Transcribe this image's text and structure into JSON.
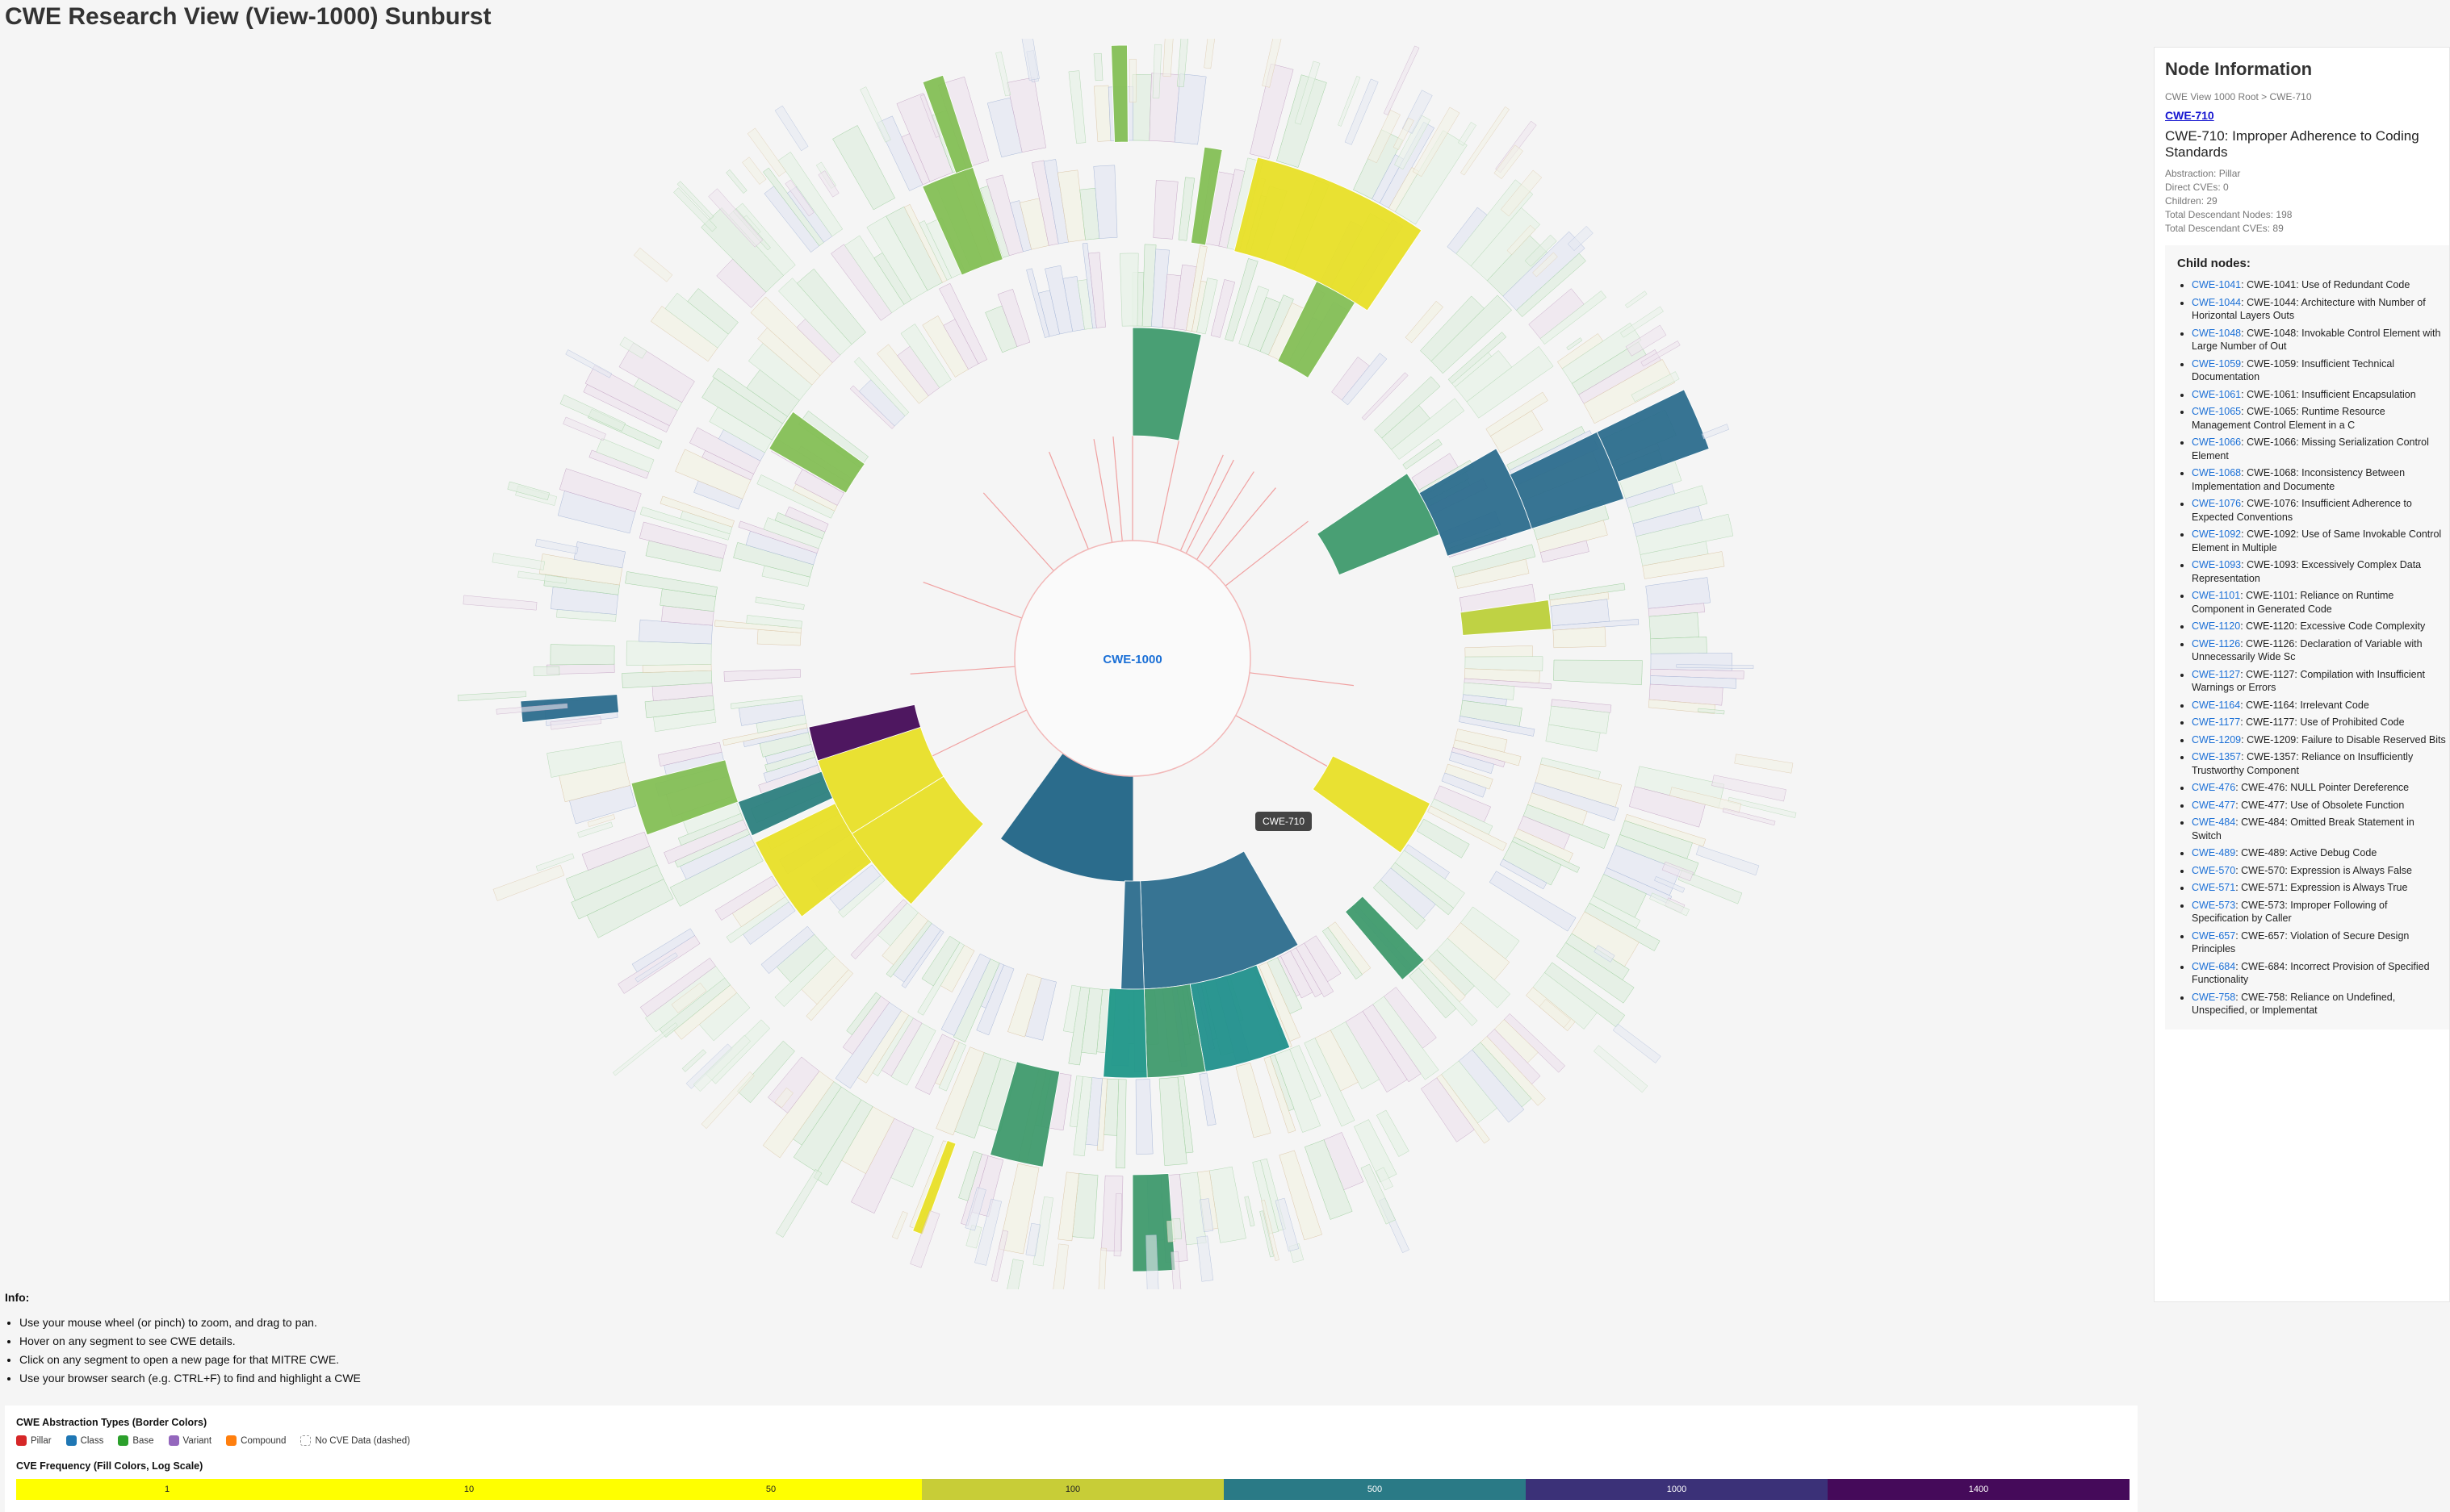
{
  "title": "CWE Research View (View-1000) Sunburst",
  "center_label": "CWE-1000",
  "tooltip": "CWE-710",
  "panel": {
    "heading": "Node Information",
    "breadcrumb": "CWE View 1000 Root > CWE-710",
    "link": "CWE-710",
    "name": "CWE-710: Improper Adherence to Coding Standards",
    "abstraction": "Abstraction: Pillar",
    "direct_cves": "Direct CVEs: 0",
    "children": "Children: 29",
    "descendant_nodes": "Total Descendant Nodes: 198",
    "descendant_cves": "Total Descendant CVEs: 89",
    "child_nodes_heading": "Child nodes:",
    "child_nodes": [
      {
        "id": "CWE-1041",
        "text": ": CWE-1041: Use of Redundant Code"
      },
      {
        "id": "CWE-1044",
        "text": ": CWE-1044: Architecture with Number of Horizontal Layers Outs"
      },
      {
        "id": "CWE-1048",
        "text": ": CWE-1048: Invokable Control Element with Large Number of Out"
      },
      {
        "id": "CWE-1059",
        "text": ": CWE-1059: Insufficient Technical Documentation"
      },
      {
        "id": "CWE-1061",
        "text": ": CWE-1061: Insufficient Encapsulation"
      },
      {
        "id": "CWE-1065",
        "text": ": CWE-1065: Runtime Resource Management Control Element in a C"
      },
      {
        "id": "CWE-1066",
        "text": ": CWE-1066: Missing Serialization Control Element"
      },
      {
        "id": "CWE-1068",
        "text": ": CWE-1068: Inconsistency Between Implementation and Documente"
      },
      {
        "id": "CWE-1076",
        "text": ": CWE-1076: Insufficient Adherence to Expected Conventions"
      },
      {
        "id": "CWE-1092",
        "text": ": CWE-1092: Use of Same Invokable Control Element in Multiple"
      },
      {
        "id": "CWE-1093",
        "text": ": CWE-1093: Excessively Complex Data Representation"
      },
      {
        "id": "CWE-1101",
        "text": ": CWE-1101: Reliance on Runtime Component in Generated Code"
      },
      {
        "id": "CWE-1120",
        "text": ": CWE-1120: Excessive Code Complexity"
      },
      {
        "id": "CWE-1126",
        "text": ": CWE-1126: Declaration of Variable with Unnecessarily Wide Sc"
      },
      {
        "id": "CWE-1127",
        "text": ": CWE-1127: Compilation with Insufficient Warnings or Errors"
      },
      {
        "id": "CWE-1164",
        "text": ": CWE-1164: Irrelevant Code"
      },
      {
        "id": "CWE-1177",
        "text": ": CWE-1177: Use of Prohibited Code"
      },
      {
        "id": "CWE-1209",
        "text": ": CWE-1209: Failure to Disable Reserved Bits"
      },
      {
        "id": "CWE-1357",
        "text": ": CWE-1357: Reliance on Insufficiently Trustworthy Component"
      },
      {
        "id": "CWE-476",
        "text": ": CWE-476: NULL Pointer Dereference"
      },
      {
        "id": "CWE-477",
        "text": ": CWE-477: Use of Obsolete Function"
      },
      {
        "id": "CWE-484",
        "text": ": CWE-484: Omitted Break Statement in Switch"
      },
      {
        "id": "CWE-489",
        "text": ": CWE-489: Active Debug Code"
      },
      {
        "id": "CWE-570",
        "text": ": CWE-570: Expression is Always False"
      },
      {
        "id": "CWE-571",
        "text": ": CWE-571: Expression is Always True"
      },
      {
        "id": "CWE-573",
        "text": ": CWE-573: Improper Following of Specification by Caller"
      },
      {
        "id": "CWE-657",
        "text": ": CWE-657: Violation of Secure Design Principles"
      },
      {
        "id": "CWE-684",
        "text": ": CWE-684: Incorrect Provision of Specified Functionality"
      },
      {
        "id": "CWE-758",
        "text": ": CWE-758: Reliance on Undefined, Unspecified, or Implementat"
      }
    ]
  },
  "info": {
    "heading": "Info:",
    "items": [
      "Use your mouse wheel (or pinch) to zoom, and drag to pan.",
      "Hover on any segment to see CWE details.",
      "Click on any segment to open a new page for that MITRE CWE.",
      "Use your browser search (e.g. CTRL+F) to find and highlight a CWE"
    ]
  },
  "legend": {
    "abstraction_title": "CWE Abstraction Types (Border Colors)",
    "abstraction_types": [
      {
        "label": "Pillar",
        "color": "#d62728"
      },
      {
        "label": "Class",
        "color": "#1f77b4"
      },
      {
        "label": "Base",
        "color": "#2ca02c"
      },
      {
        "label": "Variant",
        "color": "#9467bd"
      },
      {
        "label": "Compound",
        "color": "#ff7f0e"
      },
      {
        "label": "No CVE Data (dashed)",
        "color": "#ffffff"
      }
    ],
    "frequency_title": "CVE Frequency (Fill Colors, Log Scale)",
    "frequency_bins": [
      {
        "label": "1",
        "color": "#ffff00",
        "text": "#222"
      },
      {
        "label": "10",
        "color": "#ffff00",
        "text": "#222"
      },
      {
        "label": "50",
        "color": "#ffff00",
        "text": "#222"
      },
      {
        "label": "100",
        "color": "#c8cd37",
        "text": "#222"
      },
      {
        "label": "500",
        "color": "#2a7a86",
        "text": "#fff"
      },
      {
        "label": "1000",
        "color": "#3b3178",
        "text": "#fff"
      },
      {
        "label": "1400",
        "color": "#450a5a",
        "text": "#fff"
      }
    ]
  }
}
